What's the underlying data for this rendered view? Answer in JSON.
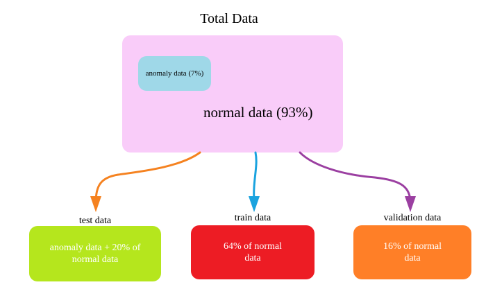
{
  "title": "Total Data",
  "total": {
    "anomaly_label": "anomaly data (7%)",
    "normal_label": "normal data (93%)"
  },
  "splits": {
    "test": {
      "label": "test data",
      "line1": "anomaly data + 20% of",
      "line2": "normal data"
    },
    "train": {
      "label": "train data",
      "line1": "64% of normal",
      "line2": "data"
    },
    "validation": {
      "label": "validation data",
      "line1": "16% of normal",
      "line2": "data"
    }
  },
  "colors": {
    "total_box": "#f9ccf9",
    "anomaly_box": "#9fd8e8",
    "test_box": "#b5e61d",
    "train_box": "#ed1c24",
    "validation_box": "#ff7f27",
    "test_arrow": "#f58220",
    "train_arrow": "#1aa3df",
    "validation_arrow": "#9b3fa1"
  }
}
